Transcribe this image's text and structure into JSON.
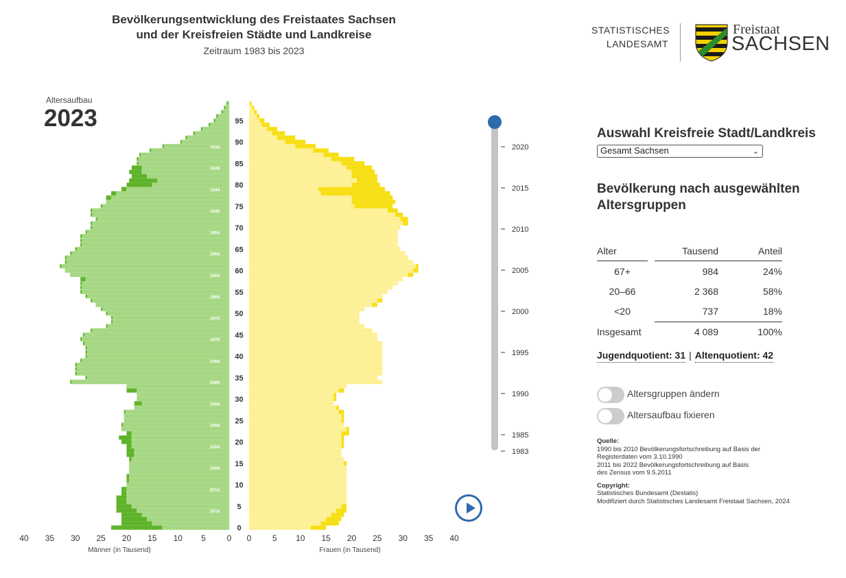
{
  "header": {
    "title_line1": "Bevölkerungsentwicklung des Freistaates Sachsen",
    "title_line2": "und der Kreisfreien Städte und Landkreise",
    "subtitle": "Zeitraum 1983 bis 2023"
  },
  "logo": {
    "line1": "STATISTISCHES",
    "line2": "LANDESAMT",
    "freistaat": "Freistaat",
    "sachsen": "SACHSEN"
  },
  "pyramid_label": "Altersaufbau",
  "current_year": "2023",
  "colors": {
    "male_dark": "#5fb32a",
    "male_light": "#a6d784",
    "female_dark": "#f7df15",
    "female_light": "#fdf095",
    "accent": "#2e6aac"
  },
  "chart_data": {
    "type": "bar",
    "orientation": "horizontal-population-pyramid",
    "xlabel_left": "Männer (in Tausend)",
    "xlabel_right": "Frauen (in Tausend)",
    "xlim": [
      0,
      40
    ],
    "x_ticks": [
      40,
      35,
      30,
      25,
      20,
      15,
      10,
      5,
      0
    ],
    "age_ticks": [
      0,
      5,
      10,
      15,
      20,
      25,
      30,
      35,
      40,
      45,
      50,
      55,
      60,
      65,
      70,
      75,
      80,
      85,
      90,
      95
    ],
    "birth_year_ticks": [
      2019,
      2014,
      2009,
      2004,
      1999,
      1994,
      1989,
      1984,
      1979,
      1974,
      1969,
      1964,
      1959,
      1954,
      1949,
      1944,
      1939,
      1934
    ],
    "ages": "0 to 99",
    "males_2023": [
      13,
      15,
      16,
      17,
      18,
      19,
      20,
      20,
      20,
      20,
      20,
      19.5,
      19.5,
      19.5,
      19.5,
      19.5,
      19,
      18.5,
      18.5,
      19,
      19,
      19,
      19,
      21,
      21,
      20.5,
      20.5,
      20.5,
      18.5,
      17,
      18,
      18,
      18,
      20,
      31,
      28,
      30,
      30,
      30,
      29,
      28,
      28,
      28,
      28.5,
      29,
      28.5,
      27,
      24,
      23,
      23,
      24,
      25,
      26,
      27,
      28,
      29,
      29,
      29,
      28,
      31,
      32,
      33,
      32,
      32,
      31,
      30,
      29,
      29,
      29,
      28,
      27,
      27,
      26,
      27,
      27,
      25,
      24,
      23,
      22,
      20,
      15,
      14,
      16,
      17,
      17,
      18,
      18,
      17.5,
      15.5,
      13,
      9.5,
      8.5,
      7,
      5.5,
      4,
      3,
      2.5,
      1.5,
      1,
      0.5
    ],
    "males_1983": [
      23,
      21,
      21,
      21,
      22,
      22,
      22,
      22,
      21,
      21,
      20,
      20,
      20,
      19.5,
      19.5,
      19.5,
      19.5,
      20,
      20,
      20,
      21,
      21.5,
      20,
      21,
      20.5,
      20.5,
      20.5,
      18.5,
      18.5,
      18.5,
      18,
      18,
      20,
      20,
      27.5,
      27.5,
      27.5,
      27.5,
      27.5,
      27.5,
      27,
      26.5,
      26.5,
      26.5,
      26.5,
      26.5,
      24,
      21,
      21,
      21,
      21,
      21,
      26,
      26.5,
      26.5,
      26.5,
      26.5,
      27,
      29,
      31,
      32,
      32,
      31,
      31,
      30,
      29,
      27.5,
      27,
      27,
      25.5,
      25,
      25,
      25,
      25,
      25,
      24.5,
      24,
      24,
      23,
      21,
      20,
      19.5,
      19,
      19.5,
      19,
      17.5,
      15.5,
      13,
      11.5,
      9.5,
      8,
      6,
      4.5,
      3.5,
      2.5,
      2,
      1.5,
      1,
      0.5,
      0.2
    ],
    "females_2023": [
      12,
      14,
      15,
      16,
      17,
      18,
      19,
      19,
      19,
      19,
      19,
      19,
      19,
      19,
      19,
      18.5,
      18.5,
      18,
      18,
      18,
      18,
      18,
      18,
      19,
      18.5,
      18,
      18,
      17.5,
      17,
      16.5,
      16.5,
      16.5,
      17.5,
      19,
      26,
      25,
      26,
      26,
      26,
      26,
      26,
      26,
      26,
      26,
      25,
      25,
      24,
      22.5,
      21.5,
      21.5,
      21.5,
      22.5,
      24,
      25,
      26,
      27,
      28,
      29,
      30,
      31,
      32,
      32.5,
      32,
      31,
      30.5,
      29.5,
      29,
      29,
      29,
      29,
      29.5,
      30,
      29.5,
      28.5,
      27,
      20.5,
      20,
      20,
      14,
      13.5,
      20,
      21,
      20,
      20,
      19,
      18,
      16,
      14.5,
      12.5,
      9,
      7,
      5.5,
      4.5,
      3.5,
      2.5,
      2,
      1.5,
      1,
      0.6,
      0.2
    ],
    "females_1983": [
      15,
      17.5,
      18,
      18.5,
      19,
      19,
      19,
      19,
      19,
      19,
      18.5,
      19,
      19,
      19,
      19,
      19,
      18.5,
      18,
      18,
      18.5,
      18.5,
      18.5,
      19.5,
      19.5,
      18.5,
      18.5,
      18.5,
      18.5,
      17.5,
      16.5,
      17,
      17,
      18.5,
      19,
      24,
      24.5,
      24.5,
      24.5,
      24.5,
      25,
      25,
      25,
      25,
      25,
      24.5,
      24,
      22.5,
      20.5,
      20.5,
      20.5,
      20.5,
      20.5,
      25,
      26,
      26,
      26,
      27,
      28,
      30,
      32,
      33,
      33,
      32,
      30.5,
      29,
      28,
      27.5,
      27.5,
      28,
      28,
      29,
      31,
      31,
      30,
      29,
      28,
      28.5,
      28,
      27.5,
      26.5,
      25.5,
      25,
      25,
      24.5,
      24,
      22.5,
      20.5,
      17.5,
      15.5,
      13,
      11,
      9,
      7,
      5.5,
      4,
      3,
      2,
      1.5,
      1,
      0.5
    ]
  },
  "timeline": {
    "year_labels": [
      "2020",
      "2015",
      "2010",
      "2005",
      "2000",
      "1995",
      "1990",
      "1985",
      "1983"
    ],
    "position": 1.0
  },
  "play_button": "play",
  "selector": {
    "title": "Auswahl Kreisfreie Stadt/Landkreis",
    "selected": "Gesamt Sachsen"
  },
  "stats": {
    "title": "Bevölkerung nach ausgewählten Altersgruppen",
    "headers": [
      "Alter",
      "Tausend",
      "Anteil"
    ],
    "rows": [
      {
        "alter": "67+",
        "tausend": "984",
        "anteil": "24%"
      },
      {
        "alter": "20–66",
        "tausend": "2 368",
        "anteil": "58%"
      },
      {
        "alter": "<20",
        "tausend": "737",
        "anteil": "18%"
      }
    ],
    "total": {
      "alter": "Insgesamt",
      "tausend": "4 089",
      "anteil": "100%"
    },
    "jugend": "Jugendquotient: 31",
    "separator": "|",
    "alten": "Altenquotient: 42"
  },
  "toggles": {
    "altersgruppen": "Altersgruppen ändern",
    "fixieren": "Altersaufbau fixieren"
  },
  "source": {
    "quelle_label": "Quelle:",
    "quelle_1": "1990 bis 2010 Bevölkerungsfortschreibung auf Basis der",
    "quelle_2": "Registerdaten vom 3.10.1990",
    "quelle_3": "2011 bis 2022 Bevölkerungsfortschreibung auf Basis",
    "quelle_4": "des Zensus vom 9.5.2011",
    "copyright_label": "Copyright:",
    "copyright_1": "Statistisches Bundesamt (Destatis)",
    "copyright_2": "Modifiziert durch Statistisches Landesamt Freistaat Sachsen, 2024"
  }
}
